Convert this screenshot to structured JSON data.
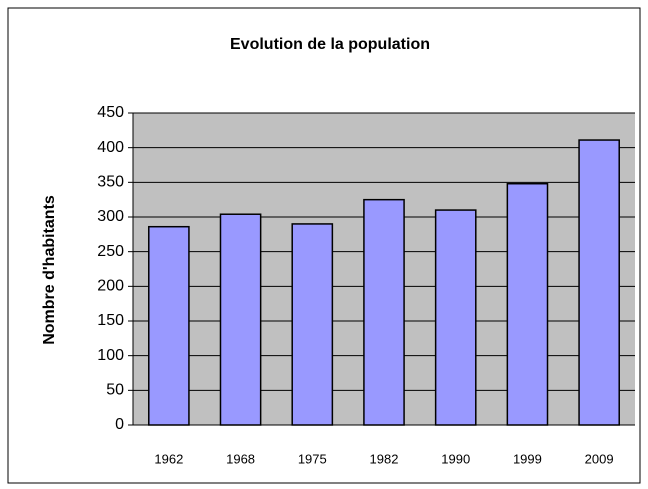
{
  "chart_data": {
    "type": "bar",
    "title": "Evolution de la population",
    "y_label": "Nombre d'habitants",
    "categories": [
      "1962",
      "1968",
      "1975",
      "1982",
      "1990",
      "1999",
      "2009"
    ],
    "values": [
      286,
      304,
      290,
      325,
      310,
      348,
      411
    ],
    "color": "#9999ff",
    "ylim": [
      0,
      450
    ],
    "yticks": [
      0,
      50,
      100,
      150,
      200,
      250,
      300,
      350,
      400,
      450
    ],
    "grid": true
  }
}
